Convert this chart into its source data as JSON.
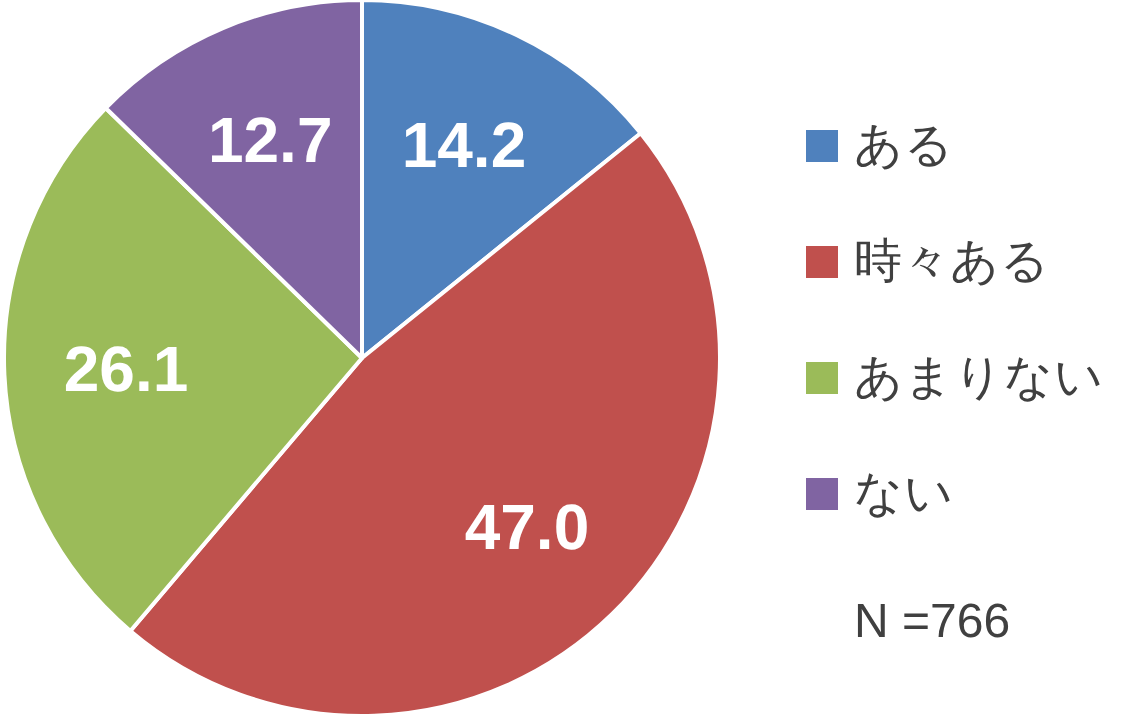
{
  "chart_data": {
    "type": "pie",
    "categories": [
      "ある",
      "時々ある",
      "あまりない",
      "ない"
    ],
    "values": [
      14.2,
      47.0,
      26.1,
      12.7
    ],
    "colors": [
      "#4f81bd",
      "#c0504d",
      "#9bbb59",
      "#8064a2"
    ],
    "value_labels": [
      "14.2",
      "47.0",
      "26.1",
      "12.7"
    ],
    "legend": "right",
    "annotations": [
      "N =766"
    ]
  }
}
